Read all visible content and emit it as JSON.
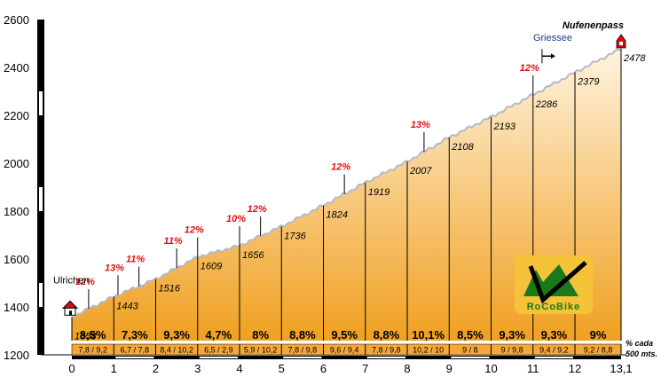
{
  "chart_data": {
    "type": "area",
    "title": "",
    "xlabel": "",
    "ylabel": "",
    "xlim": [
      0,
      13.1
    ],
    "ylim": [
      1200,
      2600
    ],
    "x_ticks": [
      "0",
      "1",
      "2",
      "3",
      "4",
      "5",
      "6",
      "7",
      "8",
      "9",
      "10",
      "11",
      "12",
      "13,1"
    ],
    "y_ticks": [
      "1200",
      "1400",
      "1600",
      "1800",
      "2000",
      "2200",
      "2400",
      "2600"
    ],
    "profile_km": [
      0,
      1,
      2,
      3,
      4,
      5,
      6,
      7,
      8,
      9,
      10,
      11,
      12,
      13.1
    ],
    "profile_alt": [
      1358,
      1443,
      1516,
      1609,
      1656,
      1736,
      1824,
      1919,
      2007,
      2108,
      2193,
      2286,
      2379,
      2478
    ],
    "altitude_labels": [
      "1358",
      "1443",
      "1516",
      "1609",
      "1656",
      "1736",
      "1824",
      "1919",
      "2007",
      "2108",
      "2193",
      "2286",
      "2379",
      "2478"
    ],
    "segment_avg": [
      "8,5%",
      "7,3%",
      "9,3%",
      "4,7%",
      "8%",
      "8,8%",
      "9,5%",
      "8,8%",
      "10,1%",
      "8,5%",
      "9,3%",
      "9,3%",
      "9%"
    ],
    "segment_half_km": [
      "7,8 / 9,2",
      "6,7 / 7,8",
      "8,4 / 10,2",
      "6,5 / 2,9",
      "5,9 / 10,2",
      "7,8 / 9,8",
      "9,6 / 9,4",
      "7,8 / 9,8",
      "10,2 / 10",
      "9 / 8",
      "9 / 9,8",
      "9,4 / 9,2",
      "9,2 / 8,8"
    ],
    "max_gradients": [
      {
        "km": 0.4,
        "label": "12%"
      },
      {
        "km": 1.1,
        "label": "13%"
      },
      {
        "km": 1.6,
        "label": "11%"
      },
      {
        "km": 2.5,
        "label": "11%"
      },
      {
        "km": 3.0,
        "label": "12%"
      },
      {
        "km": 4.0,
        "label": "10%"
      },
      {
        "km": 4.5,
        "label": "12%"
      },
      {
        "km": 6.5,
        "label": "12%"
      },
      {
        "km": 8.4,
        "label": "13%"
      },
      {
        "km": 11.0,
        "label": "12%"
      }
    ],
    "places": [
      {
        "name": "Ulrichen",
        "km": 0
      },
      {
        "name": "Griessee",
        "km": 11.3
      },
      {
        "name": "Nufenenpass",
        "km": 13.1
      }
    ],
    "footnote": [
      "% cada",
      "500 mts."
    ],
    "grid": false
  },
  "logo": {
    "text": "RoCoBike"
  },
  "colors": {
    "fill_top": "#fff3de",
    "fill_bottom": "#f0a020",
    "outline": "#b8b8c8",
    "gradient_text": "#e21010",
    "band": "#f4a838",
    "arrow": "#1a3a8a"
  }
}
